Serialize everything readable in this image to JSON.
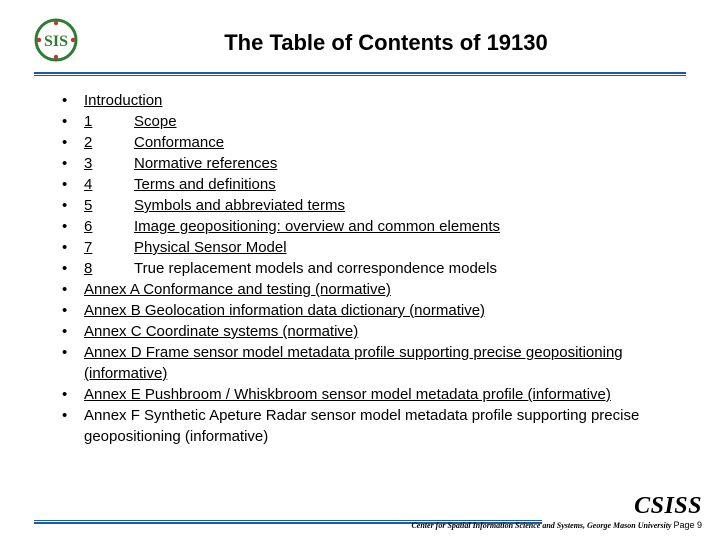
{
  "colors": {
    "rule": "#1a5aa8",
    "text": "#000000",
    "background": "#ffffff"
  },
  "logo": {
    "outer_ring": "#2e7d32",
    "inner_bg": "#ffffff",
    "letter_color": "#2e7d32",
    "dot_color": "#c0392b"
  },
  "title": "The Table of Contents of 19130",
  "toc": [
    {
      "num": "",
      "label": "Introduction",
      "underline": true
    },
    {
      "num": "1",
      "label": "Scope",
      "underline": true
    },
    {
      "num": "2",
      "label": "Conformance",
      "underline": true
    },
    {
      "num": "3",
      "label": "Normative references",
      "underline": true
    },
    {
      "num": "4",
      "label": "Terms and definitions",
      "underline": true
    },
    {
      "num": "5",
      "label": "Symbols and abbreviated terms",
      "underline": true
    },
    {
      "num": "6",
      "label": "Image geopositioning: overview and common elements",
      "underline": true
    },
    {
      "num": "7",
      "label": "Physical Sensor Model",
      "underline": true
    },
    {
      "num": "8",
      "label": "True replacement models and correspondence models",
      "underline": false
    },
    {
      "num": "",
      "label": "Annex A  Conformance and testing  (normative)",
      "underline": true
    },
    {
      "num": "",
      "label": "Annex B Geolocation information data dictionary (normative)",
      "underline": true
    },
    {
      "num": "",
      "label": "Annex C Coordinate systems  (normative)",
      "underline": true
    },
    {
      "num": "",
      "label": "Annex D Frame sensor model metadata profile supporting precise geopositioning (informative)",
      "underline": true
    },
    {
      "num": "",
      "label": "Annex E Pushbroom / Whiskbroom sensor model metadata profile (informative)",
      "underline": true
    },
    {
      "num": "",
      "label": "Annex F Synthetic Apeture Radar sensor model metadata profile supporting precise geopositioning (informative)",
      "underline": false
    }
  ],
  "footer": {
    "acronym": "CSISS",
    "subline": "Center for Spatial Information Science and Systems, George Mason University",
    "page_label": "Page  9"
  }
}
